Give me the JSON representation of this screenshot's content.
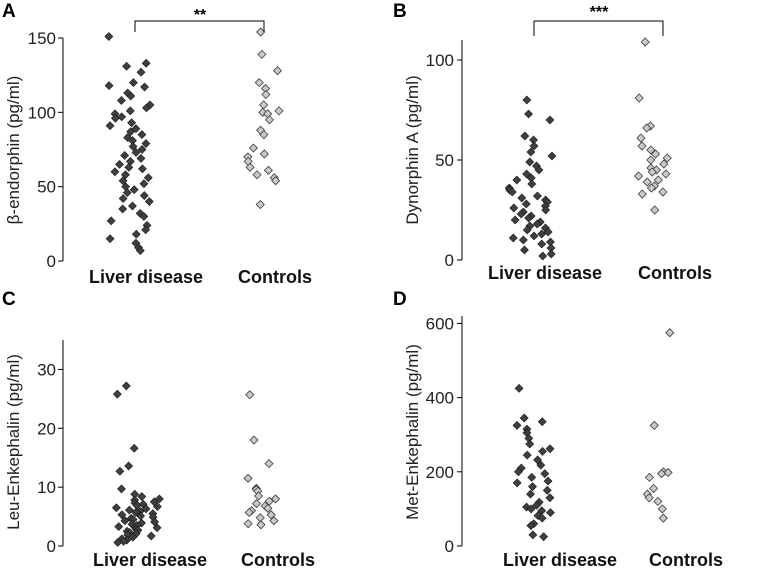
{
  "chart_data": [
    {
      "panel": "A",
      "type": "scatter",
      "ylabel": "β-endorphin (pg/ml)",
      "categories": [
        "Liver disease",
        "Controls"
      ],
      "ylim": [
        0,
        150
      ],
      "yticks": [
        0,
        50,
        100,
        150
      ],
      "significance": "**",
      "series": [
        {
          "name": "Liver disease",
          "values": [
            151,
            133,
            131,
            127,
            120,
            118,
            117,
            113,
            111,
            108,
            105,
            103,
            101,
            99,
            97,
            96,
            93,
            91,
            89,
            87,
            85,
            83,
            81,
            79,
            77,
            75,
            73,
            71,
            69,
            67,
            65,
            63,
            62,
            60,
            58,
            56,
            54,
            52,
            50,
            48,
            46,
            44,
            42,
            40,
            37,
            35,
            32,
            30,
            27,
            24,
            21,
            18,
            15,
            12,
            9,
            7
          ]
        },
        {
          "name": "Controls",
          "values": [
            154,
            139,
            128,
            120,
            116,
            112,
            105,
            101,
            100,
            99,
            95,
            88,
            85,
            76,
            72,
            70,
            67,
            63,
            61,
            58,
            56,
            54,
            38
          ]
        }
      ]
    },
    {
      "panel": "B",
      "type": "scatter",
      "ylabel": "Dynorphin A (pg/ml)",
      "categories": [
        "Liver disease",
        "Controls"
      ],
      "ylim": [
        0,
        110
      ],
      "yticks": [
        0,
        50,
        100
      ],
      "significance": "***",
      "series": [
        {
          "name": "Liver disease",
          "values": [
            80,
            73,
            70,
            62,
            60,
            57,
            54,
            52,
            49,
            47,
            45,
            43,
            41,
            40,
            38,
            36,
            35,
            34,
            32,
            31,
            30,
            29,
            28,
            27,
            26,
            25,
            24,
            23,
            22,
            21,
            20,
            19,
            18,
            17,
            16,
            15,
            14,
            13,
            12,
            11,
            10,
            9,
            8,
            6,
            5,
            3,
            2
          ]
        },
        {
          "name": "Controls",
          "values": [
            109,
            81,
            67,
            66,
            61,
            57,
            55,
            53,
            51,
            50,
            48,
            46,
            45,
            44,
            43,
            42,
            40,
            39,
            37,
            36,
            34,
            33,
            25
          ]
        }
      ]
    },
    {
      "panel": "C",
      "type": "scatter",
      "ylabel": "Leu-Enkephalin (pg/ml)",
      "categories": [
        "Liver disease",
        "Controls"
      ],
      "ylim": [
        0,
        35
      ],
      "yticks": [
        0,
        10,
        20,
        30
      ],
      "significance": "",
      "series": [
        {
          "name": "Liver disease",
          "values": [
            27.2,
            25.8,
            16.6,
            13.6,
            12.7,
            9.7,
            8.8,
            8.4,
            8.0,
            7.8,
            7.5,
            7.3,
            7.1,
            6.9,
            6.7,
            6.5,
            6.3,
            6.1,
            5.9,
            5.7,
            5.5,
            5.3,
            5.1,
            4.9,
            4.7,
            4.5,
            4.3,
            4.1,
            3.9,
            3.7,
            3.5,
            3.3,
            3.1,
            2.9,
            2.7,
            2.5,
            2.3,
            2.1,
            1.9,
            1.7,
            1.5,
            1.2,
            1.0,
            0.8,
            0.6
          ]
        },
        {
          "name": "Controls",
          "values": [
            25.7,
            18.0,
            14.0,
            11.5,
            9.8,
            9.6,
            9.3,
            8.5,
            8.0,
            7.6,
            7.2,
            6.8,
            6.4,
            6.0,
            5.7,
            5.3,
            4.8,
            4.3,
            3.8,
            3.6
          ]
        }
      ]
    },
    {
      "panel": "D",
      "type": "scatter",
      "ylabel": "Met-Enkephalin (pg/ml)",
      "categories": [
        "Liver disease",
        "Controls"
      ],
      "ylim": [
        0,
        620
      ],
      "yticks": [
        0,
        200,
        400,
        600
      ],
      "significance": "",
      "series": [
        {
          "name": "Liver disease",
          "values": [
            425,
            345,
            335,
            325,
            315,
            305,
            290,
            275,
            262,
            255,
            245,
            232,
            218,
            210,
            200,
            195,
            185,
            175,
            170,
            160,
            150,
            140,
            130,
            118,
            110,
            105,
            100,
            95,
            90,
            82,
            75,
            60,
            55,
            30,
            25
          ]
        },
        {
          "name": "Controls",
          "values": [
            575,
            325,
            200,
            198,
            195,
            185,
            155,
            140,
            130,
            120,
            100,
            75
          ]
        }
      ]
    }
  ]
}
